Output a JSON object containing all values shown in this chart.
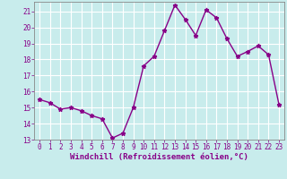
{
  "x": [
    0,
    1,
    2,
    3,
    4,
    5,
    6,
    7,
    8,
    9,
    10,
    11,
    12,
    13,
    14,
    15,
    16,
    17,
    18,
    19,
    20,
    21,
    22,
    23
  ],
  "y": [
    15.5,
    15.3,
    14.9,
    15.0,
    14.8,
    14.5,
    14.3,
    13.1,
    13.4,
    15.0,
    17.6,
    18.2,
    19.8,
    21.4,
    20.5,
    19.5,
    21.1,
    20.6,
    19.3,
    18.2,
    18.5,
    18.85,
    18.3,
    15.2
  ],
  "line_color": "#880088",
  "marker": "*",
  "marker_size": 3.5,
  "bg_color": "#c8ecec",
  "grid_color": "#ffffff",
  "xlabel": "Windchill (Refroidissement éolien,°C)",
  "xlabel_color": "#880088",
  "tick_color": "#880088",
  "ylim": [
    13,
    21.6
  ],
  "yticks": [
    13,
    14,
    15,
    16,
    17,
    18,
    19,
    20,
    21
  ],
  "xlim": [
    -0.5,
    23.5
  ],
  "xticks": [
    0,
    1,
    2,
    3,
    4,
    5,
    6,
    7,
    8,
    9,
    10,
    11,
    12,
    13,
    14,
    15,
    16,
    17,
    18,
    19,
    20,
    21,
    22,
    23
  ],
  "tick_fontsize": 5.5,
  "xlabel_fontsize": 6.5,
  "linewidth": 1.0
}
